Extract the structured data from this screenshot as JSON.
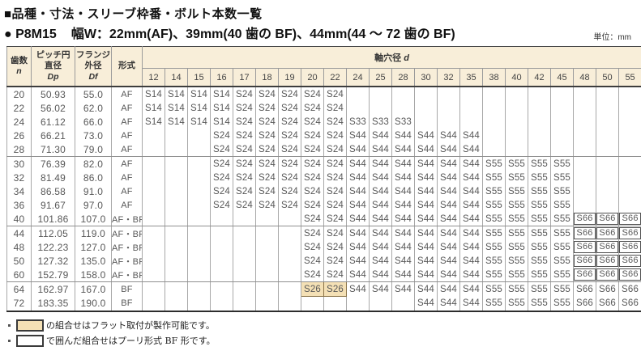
{
  "title": "■品種・寸法・スリーブ枠番・ボルト本数一覧",
  "subtitle": {
    "model": "● P8M15",
    "spec": "幅W：22mm(AF)、39mm(40 歯の BF)、44mm(44 ～ 72 歯の BF)"
  },
  "unit_label": "単位：mm",
  "colors": {
    "header_bg": "#f8eed9",
    "highlight_bg": "#f4e0b5",
    "highlight_border": "#8a7348",
    "grid_line": "#9b9b9b",
    "heavy_line": "#3d3d3d"
  },
  "table": {
    "headers": {
      "teeth_l1": "歯数",
      "teeth_sym": "n",
      "pitch_l1": "ピッチ円",
      "pitch_l2": "直径",
      "pitch_sym": "Dp",
      "flange_l1": "フランジ",
      "flange_l2": "外径",
      "flange_sym": "Df",
      "type": "形式",
      "bore_group_label": "軸穴径",
      "bore_group_sym": "d",
      "bores": [
        "12",
        "14",
        "15",
        "16",
        "17",
        "18",
        "19",
        "20",
        "22",
        "24",
        "25",
        "28",
        "30",
        "32",
        "35",
        "38",
        "40",
        "42",
        "45",
        "48",
        "50",
        "55"
      ]
    },
    "rows": [
      {
        "n": "20",
        "dp": "50.93",
        "df": "55.0",
        "type": "AF",
        "cells": [
          "S14",
          "S14",
          "S14",
          "S14",
          "S24",
          "S24",
          "S24",
          "S24",
          "S24",
          "",
          "",
          "",
          "",
          "",
          "",
          "",
          "",
          "",
          "",
          "",
          "",
          ""
        ],
        "boxed": [],
        "highlighted": [],
        "sep_after": false
      },
      {
        "n": "22",
        "dp": "56.02",
        "df": "62.0",
        "type": "AF",
        "cells": [
          "S14",
          "S14",
          "S14",
          "S14",
          "S24",
          "S24",
          "S24",
          "S24",
          "S24",
          "",
          "",
          "",
          "",
          "",
          "",
          "",
          "",
          "",
          "",
          "",
          "",
          ""
        ],
        "boxed": [],
        "highlighted": [],
        "sep_after": false
      },
      {
        "n": "24",
        "dp": "61.12",
        "df": "66.0",
        "type": "AF",
        "cells": [
          "S14",
          "S14",
          "S14",
          "S14",
          "S24",
          "S24",
          "S24",
          "S24",
          "S24",
          "S33",
          "S33",
          "S33",
          "",
          "",
          "",
          "",
          "",
          "",
          "",
          "",
          "",
          ""
        ],
        "boxed": [],
        "highlighted": [],
        "sep_after": false
      },
      {
        "n": "26",
        "dp": "66.21",
        "df": "73.0",
        "type": "AF",
        "cells": [
          "",
          "",
          "",
          "S24",
          "S24",
          "S24",
          "S24",
          "S24",
          "S24",
          "S44",
          "S44",
          "S44",
          "S44",
          "S44",
          "S44",
          "",
          "",
          "",
          "",
          "",
          "",
          ""
        ],
        "boxed": [],
        "highlighted": [],
        "sep_after": false
      },
      {
        "n": "28",
        "dp": "71.30",
        "df": "79.0",
        "type": "AF",
        "cells": [
          "",
          "",
          "",
          "S24",
          "S24",
          "S24",
          "S24",
          "S24",
          "S24",
          "S44",
          "S44",
          "S44",
          "S44",
          "S44",
          "S44",
          "",
          "",
          "",
          "",
          "",
          "",
          ""
        ],
        "boxed": [],
        "highlighted": [],
        "sep_after": true
      },
      {
        "n": "30",
        "dp": "76.39",
        "df": "82.0",
        "type": "AF",
        "cells": [
          "",
          "",
          "",
          "S24",
          "S24",
          "S24",
          "S24",
          "S24",
          "S24",
          "S44",
          "S44",
          "S44",
          "S44",
          "S44",
          "S44",
          "S55",
          "S55",
          "S55",
          "S55",
          "",
          "",
          ""
        ],
        "boxed": [],
        "highlighted": [],
        "sep_after": false
      },
      {
        "n": "32",
        "dp": "81.49",
        "df": "86.0",
        "type": "AF",
        "cells": [
          "",
          "",
          "",
          "S24",
          "S24",
          "S24",
          "S24",
          "S24",
          "S24",
          "S44",
          "S44",
          "S44",
          "S44",
          "S44",
          "S44",
          "S55",
          "S55",
          "S55",
          "S55",
          "",
          "",
          ""
        ],
        "boxed": [],
        "highlighted": [],
        "sep_after": false
      },
      {
        "n": "34",
        "dp": "86.58",
        "df": "91.0",
        "type": "AF",
        "cells": [
          "",
          "",
          "",
          "S24",
          "S24",
          "S24",
          "S24",
          "S24",
          "S24",
          "S44",
          "S44",
          "S44",
          "S44",
          "S44",
          "S44",
          "S55",
          "S55",
          "S55",
          "S55",
          "",
          "",
          ""
        ],
        "boxed": [],
        "highlighted": [],
        "sep_after": false
      },
      {
        "n": "36",
        "dp": "91.67",
        "df": "97.0",
        "type": "AF",
        "cells": [
          "",
          "",
          "",
          "S24",
          "S24",
          "S24",
          "S24",
          "S24",
          "S24",
          "S44",
          "S44",
          "S44",
          "S44",
          "S44",
          "S44",
          "S55",
          "S55",
          "S55",
          "S55",
          "",
          "",
          ""
        ],
        "boxed": [],
        "highlighted": [],
        "sep_after": false
      },
      {
        "n": "40",
        "dp": "101.86",
        "df": "107.0",
        "type": "AF・BF",
        "cells": [
          "",
          "",
          "",
          "",
          "",
          "",
          "",
          "S24",
          "S24",
          "S44",
          "S44",
          "S44",
          "S44",
          "S44",
          "S44",
          "S55",
          "S55",
          "S55",
          "S55",
          "S66",
          "S66",
          "S66"
        ],
        "boxed": [
          19,
          20,
          21
        ],
        "highlighted": [],
        "sep_after": true
      },
      {
        "n": "44",
        "dp": "112.05",
        "df": "119.0",
        "type": "AF・BF",
        "cells": [
          "",
          "",
          "",
          "",
          "",
          "",
          "",
          "S24",
          "S24",
          "S44",
          "S44",
          "S44",
          "S44",
          "S44",
          "S44",
          "S55",
          "S55",
          "S55",
          "S55",
          "S66",
          "S66",
          "S66"
        ],
        "boxed": [
          19,
          20,
          21
        ],
        "highlighted": [],
        "sep_after": false
      },
      {
        "n": "48",
        "dp": "122.23",
        "df": "127.0",
        "type": "AF・BF",
        "cells": [
          "",
          "",
          "",
          "",
          "",
          "",
          "",
          "S24",
          "S24",
          "S44",
          "S44",
          "S44",
          "S44",
          "S44",
          "S44",
          "S55",
          "S55",
          "S55",
          "S55",
          "S66",
          "S66",
          "S66"
        ],
        "boxed": [
          19,
          20,
          21
        ],
        "highlighted": [],
        "sep_after": false
      },
      {
        "n": "50",
        "dp": "127.32",
        "df": "135.0",
        "type": "AF・BF",
        "cells": [
          "",
          "",
          "",
          "",
          "",
          "",
          "",
          "S24",
          "S24",
          "S44",
          "S44",
          "S44",
          "S44",
          "S44",
          "S44",
          "S55",
          "S55",
          "S55",
          "S55",
          "S66",
          "S66",
          "S66"
        ],
        "boxed": [
          19,
          20,
          21
        ],
        "highlighted": [],
        "sep_after": false
      },
      {
        "n": "60",
        "dp": "152.79",
        "df": "158.0",
        "type": "AF・BF",
        "cells": [
          "",
          "",
          "",
          "",
          "",
          "",
          "",
          "S24",
          "S24",
          "S44",
          "S44",
          "S44",
          "S44",
          "S44",
          "S44",
          "S55",
          "S55",
          "S55",
          "S55",
          "S66",
          "S66",
          "S66"
        ],
        "boxed": [
          19,
          20,
          21
        ],
        "highlighted": [],
        "sep_after": true
      },
      {
        "n": "64",
        "dp": "162.97",
        "df": "167.0",
        "type": "BF",
        "cells": [
          "",
          "",
          "",
          "",
          "",
          "",
          "",
          "S26",
          "S26",
          "S44",
          "S44",
          "S44",
          "S44",
          "S44",
          "S44",
          "S55",
          "S55",
          "S55",
          "S55",
          "S66",
          "S66",
          "S66"
        ],
        "boxed": [],
        "highlighted": [
          7,
          8
        ],
        "sep_after": false
      },
      {
        "n": "72",
        "dp": "183.35",
        "df": "190.0",
        "type": "BF",
        "cells": [
          "",
          "",
          "",
          "",
          "",
          "",
          "",
          "",
          "",
          "",
          "",
          "",
          "S44",
          "S44",
          "S44",
          "S55",
          "S55",
          "S55",
          "S55",
          "S66",
          "S66",
          "S66"
        ],
        "boxed": [],
        "highlighted": [],
        "sep_after": false
      }
    ]
  },
  "notes": [
    {
      "swatch": "tan",
      "text": "の組合せはフラット取付が製作可能です。"
    },
    {
      "swatch": "white",
      "text": "で囲んだ組合せはプーリ形式 BF 形です。"
    }
  ]
}
